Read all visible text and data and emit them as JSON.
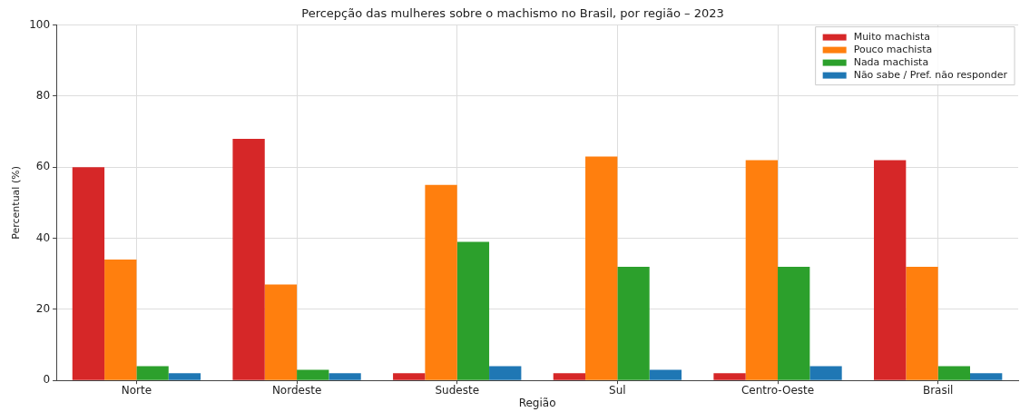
{
  "chart_data": {
    "type": "bar",
    "title": "Percepção das mulheres sobre o machismo no Brasil, por região – 2023",
    "xlabel": "Região",
    "ylabel": "Percentual (%)",
    "categories": [
      "Norte",
      "Nordeste",
      "Sudeste",
      "Sul",
      "Centro-Oeste",
      "Brasil"
    ],
    "series": [
      {
        "name": "Muito machista",
        "color": "#d62728",
        "values": [
          60,
          68,
          2,
          2,
          2,
          62
        ]
      },
      {
        "name": "Pouco machista",
        "color": "#ff7f0e",
        "values": [
          34,
          27,
          55,
          63,
          62,
          32
        ]
      },
      {
        "name": "Nada machista",
        "color": "#2ca02c",
        "values": [
          4,
          3,
          39,
          32,
          32,
          4
        ]
      },
      {
        "name": "Não sabe / Pref. não responder",
        "color": "#1f77b4",
        "values": [
          2,
          2,
          4,
          3,
          4,
          2
        ]
      }
    ],
    "ylim": [
      0,
      100
    ],
    "yticks": [
      0,
      20,
      40,
      60,
      80,
      100
    ],
    "grid": true,
    "legend": "top right"
  }
}
